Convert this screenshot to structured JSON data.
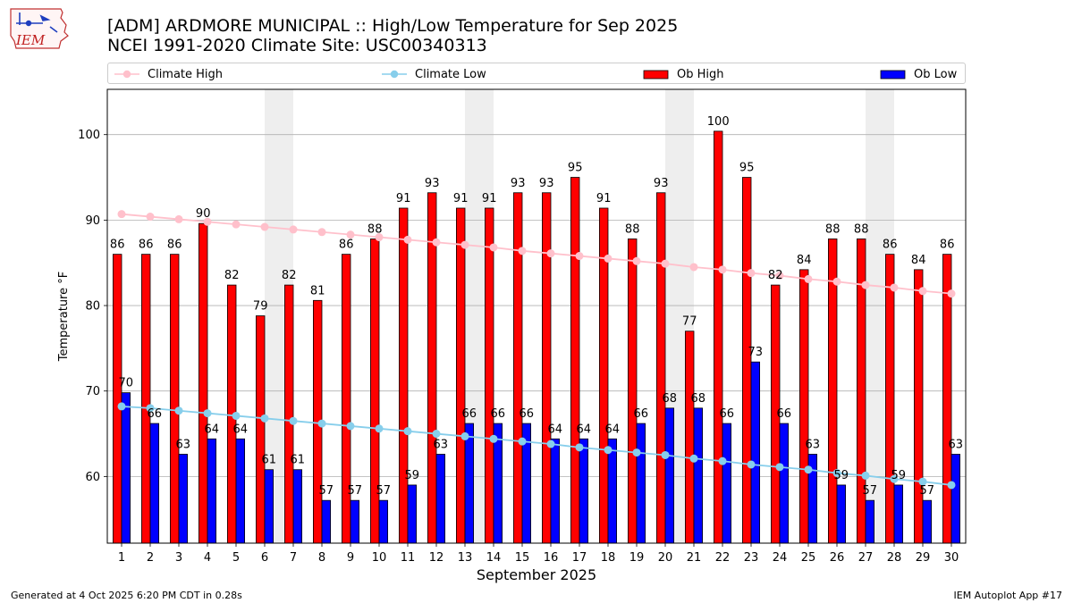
{
  "header": {
    "title_line1": "[ADM] ARDMORE MUNICIPAL :: High/Low Temperature for Sep 2025",
    "title_line2": "NCEI 1991-2020 Climate Site: USC00340313"
  },
  "logo": {
    "text": "IEM"
  },
  "legend": {
    "climate_high": "Climate High",
    "climate_low": "Climate Low",
    "ob_high": "Ob High",
    "ob_low": "Ob Low"
  },
  "colors": {
    "ob_high": "#ff0000",
    "ob_low": "#0000ff",
    "climate_high": "#ffc0cb",
    "climate_low": "#87ceeb",
    "weekend_band": "#eeeeee",
    "grid": "#b0b0b0"
  },
  "footer": {
    "left": "Generated at 4 Oct 2025 6:20 PM CDT in 0.28s",
    "right": "IEM Autoplot App #17"
  },
  "chart_data": {
    "type": "bar",
    "xlabel": "September 2025",
    "ylabel": "Temperature °F",
    "ylim": [
      52.2,
      105.3
    ],
    "yticks": [
      60,
      70,
      80,
      90,
      100
    ],
    "grid": "horizontal",
    "categories": [
      "1",
      "2",
      "3",
      "4",
      "5",
      "6",
      "7",
      "8",
      "9",
      "10",
      "11",
      "12",
      "13",
      "14",
      "15",
      "16",
      "17",
      "18",
      "19",
      "20",
      "21",
      "22",
      "23",
      "24",
      "25",
      "26",
      "27",
      "28",
      "29",
      "30"
    ],
    "weekend_days": [
      [
        6,
        7
      ],
      [
        13,
        14
      ],
      [
        20,
        21
      ],
      [
        27,
        28
      ]
    ],
    "series": [
      {
        "name": "Ob High",
        "kind": "bar",
        "values": [
          86,
          86,
          86,
          90,
          82,
          79,
          82,
          81,
          86,
          88,
          91,
          93,
          91,
          91,
          93,
          93,
          95,
          91,
          88,
          93,
          77,
          100,
          95,
          82,
          84,
          88,
          88,
          86,
          84,
          86
        ],
        "plotted": [
          86,
          86,
          86,
          89.6,
          82.4,
          78.8,
          82.4,
          80.6,
          86,
          87.8,
          91.4,
          93.2,
          91.4,
          91.4,
          93.2,
          93.2,
          95,
          91.4,
          87.8,
          93.2,
          77,
          100.4,
          95,
          82.4,
          84.2,
          87.8,
          87.8,
          86,
          84.2,
          86
        ]
      },
      {
        "name": "Ob Low",
        "kind": "bar",
        "values": [
          70,
          66,
          63,
          64,
          64,
          61,
          61,
          57,
          57,
          57,
          59,
          63,
          66,
          66,
          66,
          64,
          64,
          64,
          66,
          68,
          68,
          66,
          73,
          66,
          63,
          59,
          57,
          59,
          57,
          63
        ],
        "plotted": [
          69.8,
          66.2,
          62.6,
          64.4,
          64.4,
          60.8,
          60.8,
          57.2,
          57.2,
          57.2,
          59,
          62.6,
          66.2,
          66.2,
          66.2,
          64.4,
          64.4,
          64.4,
          66.2,
          68,
          68,
          66.2,
          73.4,
          66.2,
          62.6,
          59,
          57.2,
          59,
          57.2,
          62.6
        ]
      },
      {
        "name": "Climate High",
        "kind": "line",
        "values": [
          90.7,
          90.4,
          90.1,
          89.8,
          89.5,
          89.2,
          88.9,
          88.6,
          88.3,
          88.0,
          87.7,
          87.4,
          87.1,
          86.8,
          86.4,
          86.1,
          85.8,
          85.5,
          85.2,
          84.9,
          84.5,
          84.2,
          83.8,
          83.5,
          83.1,
          82.8,
          82.4,
          82.1,
          81.7,
          81.4
        ]
      },
      {
        "name": "Climate Low",
        "kind": "line",
        "values": [
          68.2,
          68.0,
          67.7,
          67.4,
          67.1,
          66.8,
          66.5,
          66.2,
          65.9,
          65.6,
          65.3,
          65.0,
          64.7,
          64.4,
          64.1,
          63.8,
          63.4,
          63.1,
          62.8,
          62.5,
          62.1,
          61.8,
          61.4,
          61.1,
          60.8,
          60.4,
          60.1,
          59.7,
          59.4,
          59.0
        ]
      }
    ]
  }
}
